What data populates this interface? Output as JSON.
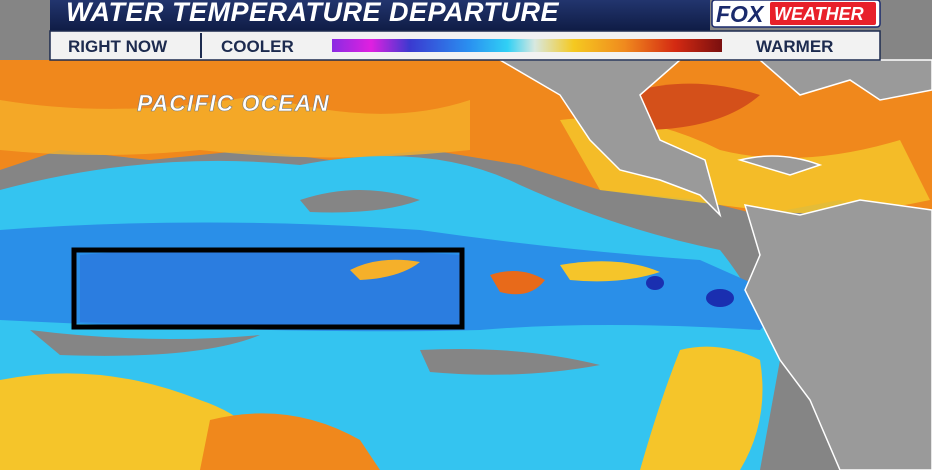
{
  "header": {
    "title": "WATER TEMPERATURE DEPARTURE",
    "logo": {
      "brand": "FOX",
      "product": "WEATHER"
    }
  },
  "legend": {
    "period": "RIGHT NOW",
    "low": "COOLER",
    "high": "WARMER"
  },
  "map": {
    "label": "PACIFIC OCEAN"
  }
}
